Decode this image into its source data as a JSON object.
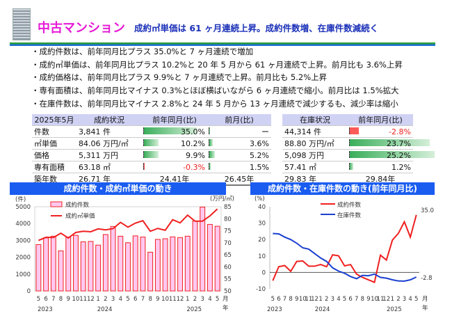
{
  "header": {
    "title": "中古マンション",
    "subtitle": "成約㎡単価は 61 ヶ月連続上昇。成約件数増、在庫件数減続く",
    "icon": "building-icon"
  },
  "bullets": [
    "・成約件数は、前年同月比プラス 35.0%と 7 ヶ月連続で増加",
    "・成約㎡単価は、前年同月比プラス 10.2%と 20 年 5 月から 61 ヶ月連続で上昇。前月比も 3.6%上昇",
    "・成約価格は、前年同月比プラス 9.9%と 7 ヶ月連続で上昇。前月比も 5.2%上昇",
    "・専有面積は、前年同月比マイナス 0.3%とほぼ横ばいながら 6 ヶ月連続で縮小。前月比は 1.5%拡大",
    "・在庫件数は、前年同月比マイナス 2.8%と 24 年 5 月から 13 ヶ月連続で減少するも、減少率は縮小"
  ],
  "contract_table": {
    "headers": [
      "2025年5月",
      "成約状況",
      "前年同月(比)",
      "前月(比)"
    ],
    "rows": [
      {
        "label": "件数",
        "value": "3,841 件",
        "yoy": "35.0%",
        "yoy_num": 35.0,
        "mom": "ー",
        "mom_num": 0
      },
      {
        "label": "㎡単価",
        "value": "84.06 万円/㎡",
        "yoy": "10.2%",
        "yoy_num": 10.2,
        "mom": "3.6%",
        "mom_num": 3.6
      },
      {
        "label": "価格",
        "value": "5,311 万円",
        "yoy": "9.9%",
        "yoy_num": 9.9,
        "mom": "5.2%",
        "mom_num": 5.2
      },
      {
        "label": "専有面積",
        "value": "63.18 ㎡",
        "yoy": "-0.3%",
        "yoy_num": -0.3,
        "mom": "1.5%",
        "mom_num": 1.5
      },
      {
        "label": "築年数",
        "value": "26.71 年",
        "yoy": "24.41年",
        "mom": "26.45年"
      }
    ]
  },
  "inventory_table": {
    "headers": [
      "在庫状況",
      "前年同月(比)"
    ],
    "rows": [
      {
        "value": "44,314 件",
        "yoy": "-2.8%",
        "yoy_num": -2.8
      },
      {
        "value": "88.80 万円/㎡",
        "yoy": "23.7%",
        "yoy_num": 23.7
      },
      {
        "value": "5,098 万円",
        "yoy": "25.2%",
        "yoy_num": 25.2
      },
      {
        "value": "57.41 ㎡",
        "yoy": "1.2%",
        "yoy_num": 1.2
      },
      {
        "value": "29.83 年",
        "yoy": "29.84年"
      }
    ]
  },
  "colors": {
    "accent_magenta": "#e61ad6",
    "banner_blue": "#1a5cf0",
    "red": "#f02020",
    "blue": "#1a3fd0",
    "bar_pink": "#ffc8ef"
  },
  "chart_data": [
    {
      "type": "bar+line",
      "title": "成約件数・成約㎡単価の動き",
      "ylabel_left": "(件)",
      "ylabel_right": "(万円/㎡)",
      "ylim_left": [
        0,
        5000
      ],
      "ylim_right": [
        50,
        85
      ],
      "yticks_left": [
        0,
        1000,
        2000,
        3000,
        4000,
        5000
      ],
      "yticks_right": [
        50,
        55,
        60,
        65,
        70,
        75,
        80,
        85
      ],
      "categories": [
        "5",
        "6",
        "7",
        "8",
        "9",
        "10",
        "11",
        "12",
        "1",
        "2",
        "3",
        "4",
        "5",
        "6",
        "7",
        "8",
        "9",
        "10",
        "11",
        "12",
        "1",
        "2",
        "3",
        "4",
        "5"
      ],
      "year_labels": [
        {
          "at": 0,
          "text": "2023"
        },
        {
          "at": 8,
          "text": "2024"
        },
        {
          "at": 20,
          "text": "2025"
        }
      ],
      "x_unit": "月",
      "x_unit2": "年",
      "series": [
        {
          "name": "成約件数",
          "type": "bar",
          "values": [
            2750,
            3150,
            3250,
            2380,
            3200,
            3300,
            2920,
            2940,
            2720,
            3350,
            3830,
            3250,
            2860,
            3270,
            3200,
            2300,
            3060,
            3100,
            3210,
            3170,
            3250,
            4150,
            4980,
            3950,
            3841
          ]
        },
        {
          "name": "成約㎡単価",
          "type": "line",
          "values": [
            71.0,
            72.3,
            72.2,
            74.0,
            72.0,
            74.3,
            74.8,
            74.6,
            75.8,
            75.4,
            75.9,
            78.5,
            76.5,
            78.2,
            79.2,
            74.8,
            76.0,
            75.2,
            79.6,
            78.3,
            81.5,
            79.0,
            79.0,
            81.2,
            84.06
          ]
        }
      ],
      "legend": "top-left"
    },
    {
      "type": "line",
      "title": "成約件数・在庫件数の動き(前年同月比)",
      "ylabel": "(%)",
      "ylim": [
        -10,
        40
      ],
      "yticks": [
        -10,
        0,
        10,
        20,
        30,
        40
      ],
      "categories": [
        "5",
        "6",
        "7",
        "8",
        "9",
        "10",
        "11",
        "12",
        "1",
        "2",
        "3",
        "4",
        "5",
        "6",
        "7",
        "8",
        "9",
        "10",
        "11",
        "12",
        "1",
        "2",
        "3",
        "4",
        "5"
      ],
      "year_labels": [
        {
          "at": 0,
          "text": "2023"
        },
        {
          "at": 8,
          "text": "2024"
        },
        {
          "at": 20,
          "text": "2025"
        }
      ],
      "x_unit": "月",
      "x_unit2": "年",
      "series": [
        {
          "name": "成約件数",
          "color": "#f02020",
          "values": [
            -5,
            3.5,
            4.2,
            0.7,
            6.7,
            7,
            3.8,
            3.8,
            4.8,
            3.5,
            10.7,
            10.1,
            4,
            4.8,
            -1,
            -3,
            -4.5,
            -6,
            10.5,
            7.5,
            19.7,
            23.8,
            30.8,
            21.5,
            35.0
          ],
          "end_label": "35.0"
        },
        {
          "name": "在庫件数",
          "color": "#1a3fd0",
          "values": [
            23.7,
            23.5,
            21.5,
            20,
            17.8,
            15,
            14.2,
            11.5,
            8.8,
            6.7,
            2.8,
            0.8,
            -0.5,
            -2.5,
            -3.8,
            -1.8,
            -2,
            -1,
            -3,
            -3.5,
            -4.5,
            -5.2,
            -5.3,
            -4.5,
            -2.8
          ],
          "end_label": "-2.8"
        }
      ],
      "legend": "top-center"
    }
  ]
}
